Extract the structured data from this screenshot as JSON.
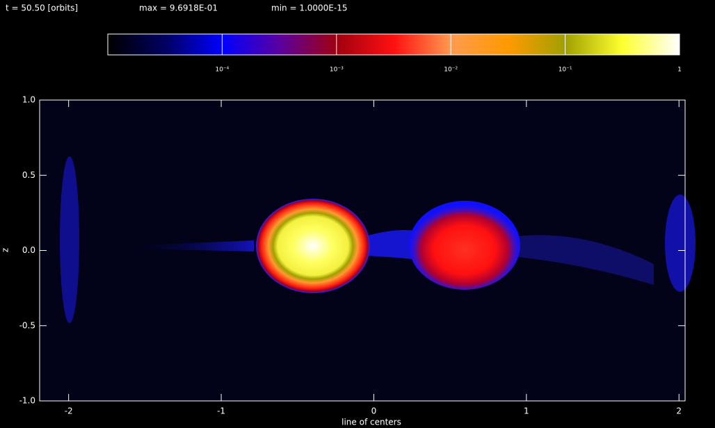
{
  "chart_data": {
    "type": "image",
    "header": [
      "t =   50.50 [orbits]",
      "max =  9.6918E-01",
      "min =  1.0000E-15"
    ],
    "xlabel": "line of centers",
    "ylabel": "z",
    "xlim": [
      -2.19,
      2.04
    ],
    "ylim": [
      -1.0,
      1.0
    ],
    "xticks": [
      -2,
      -1,
      0,
      1,
      2
    ],
    "yticks": [
      {
        "value": 1.0,
        "label": "1.0"
      },
      {
        "value": 0.5,
        "label": "0.5"
      },
      {
        "value": 0.0,
        "label": "0.0"
      },
      {
        "value": -0.5,
        "label": "-0.5"
      },
      {
        "value": -1.0,
        "label": "-1.0"
      }
    ],
    "colorbar": {
      "log": true,
      "clim": [
        1e-05,
        1
      ],
      "ticks": [
        {
          "value": 0.0001,
          "label": "10⁻⁴"
        },
        {
          "value": 0.001,
          "label": "10⁻³"
        },
        {
          "value": 0.01,
          "label": "10⁻²"
        },
        {
          "value": 0.1,
          "label": "10⁻¹"
        },
        1
      ],
      "colormap": [
        "#000000",
        "#000060",
        "#0000ff",
        "#5a00a0",
        "#a00010",
        "#ff1010",
        "#ff9a50",
        "#ff9a00",
        "#a0a000",
        "#ffff30",
        "#ffffff"
      ]
    }
  }
}
